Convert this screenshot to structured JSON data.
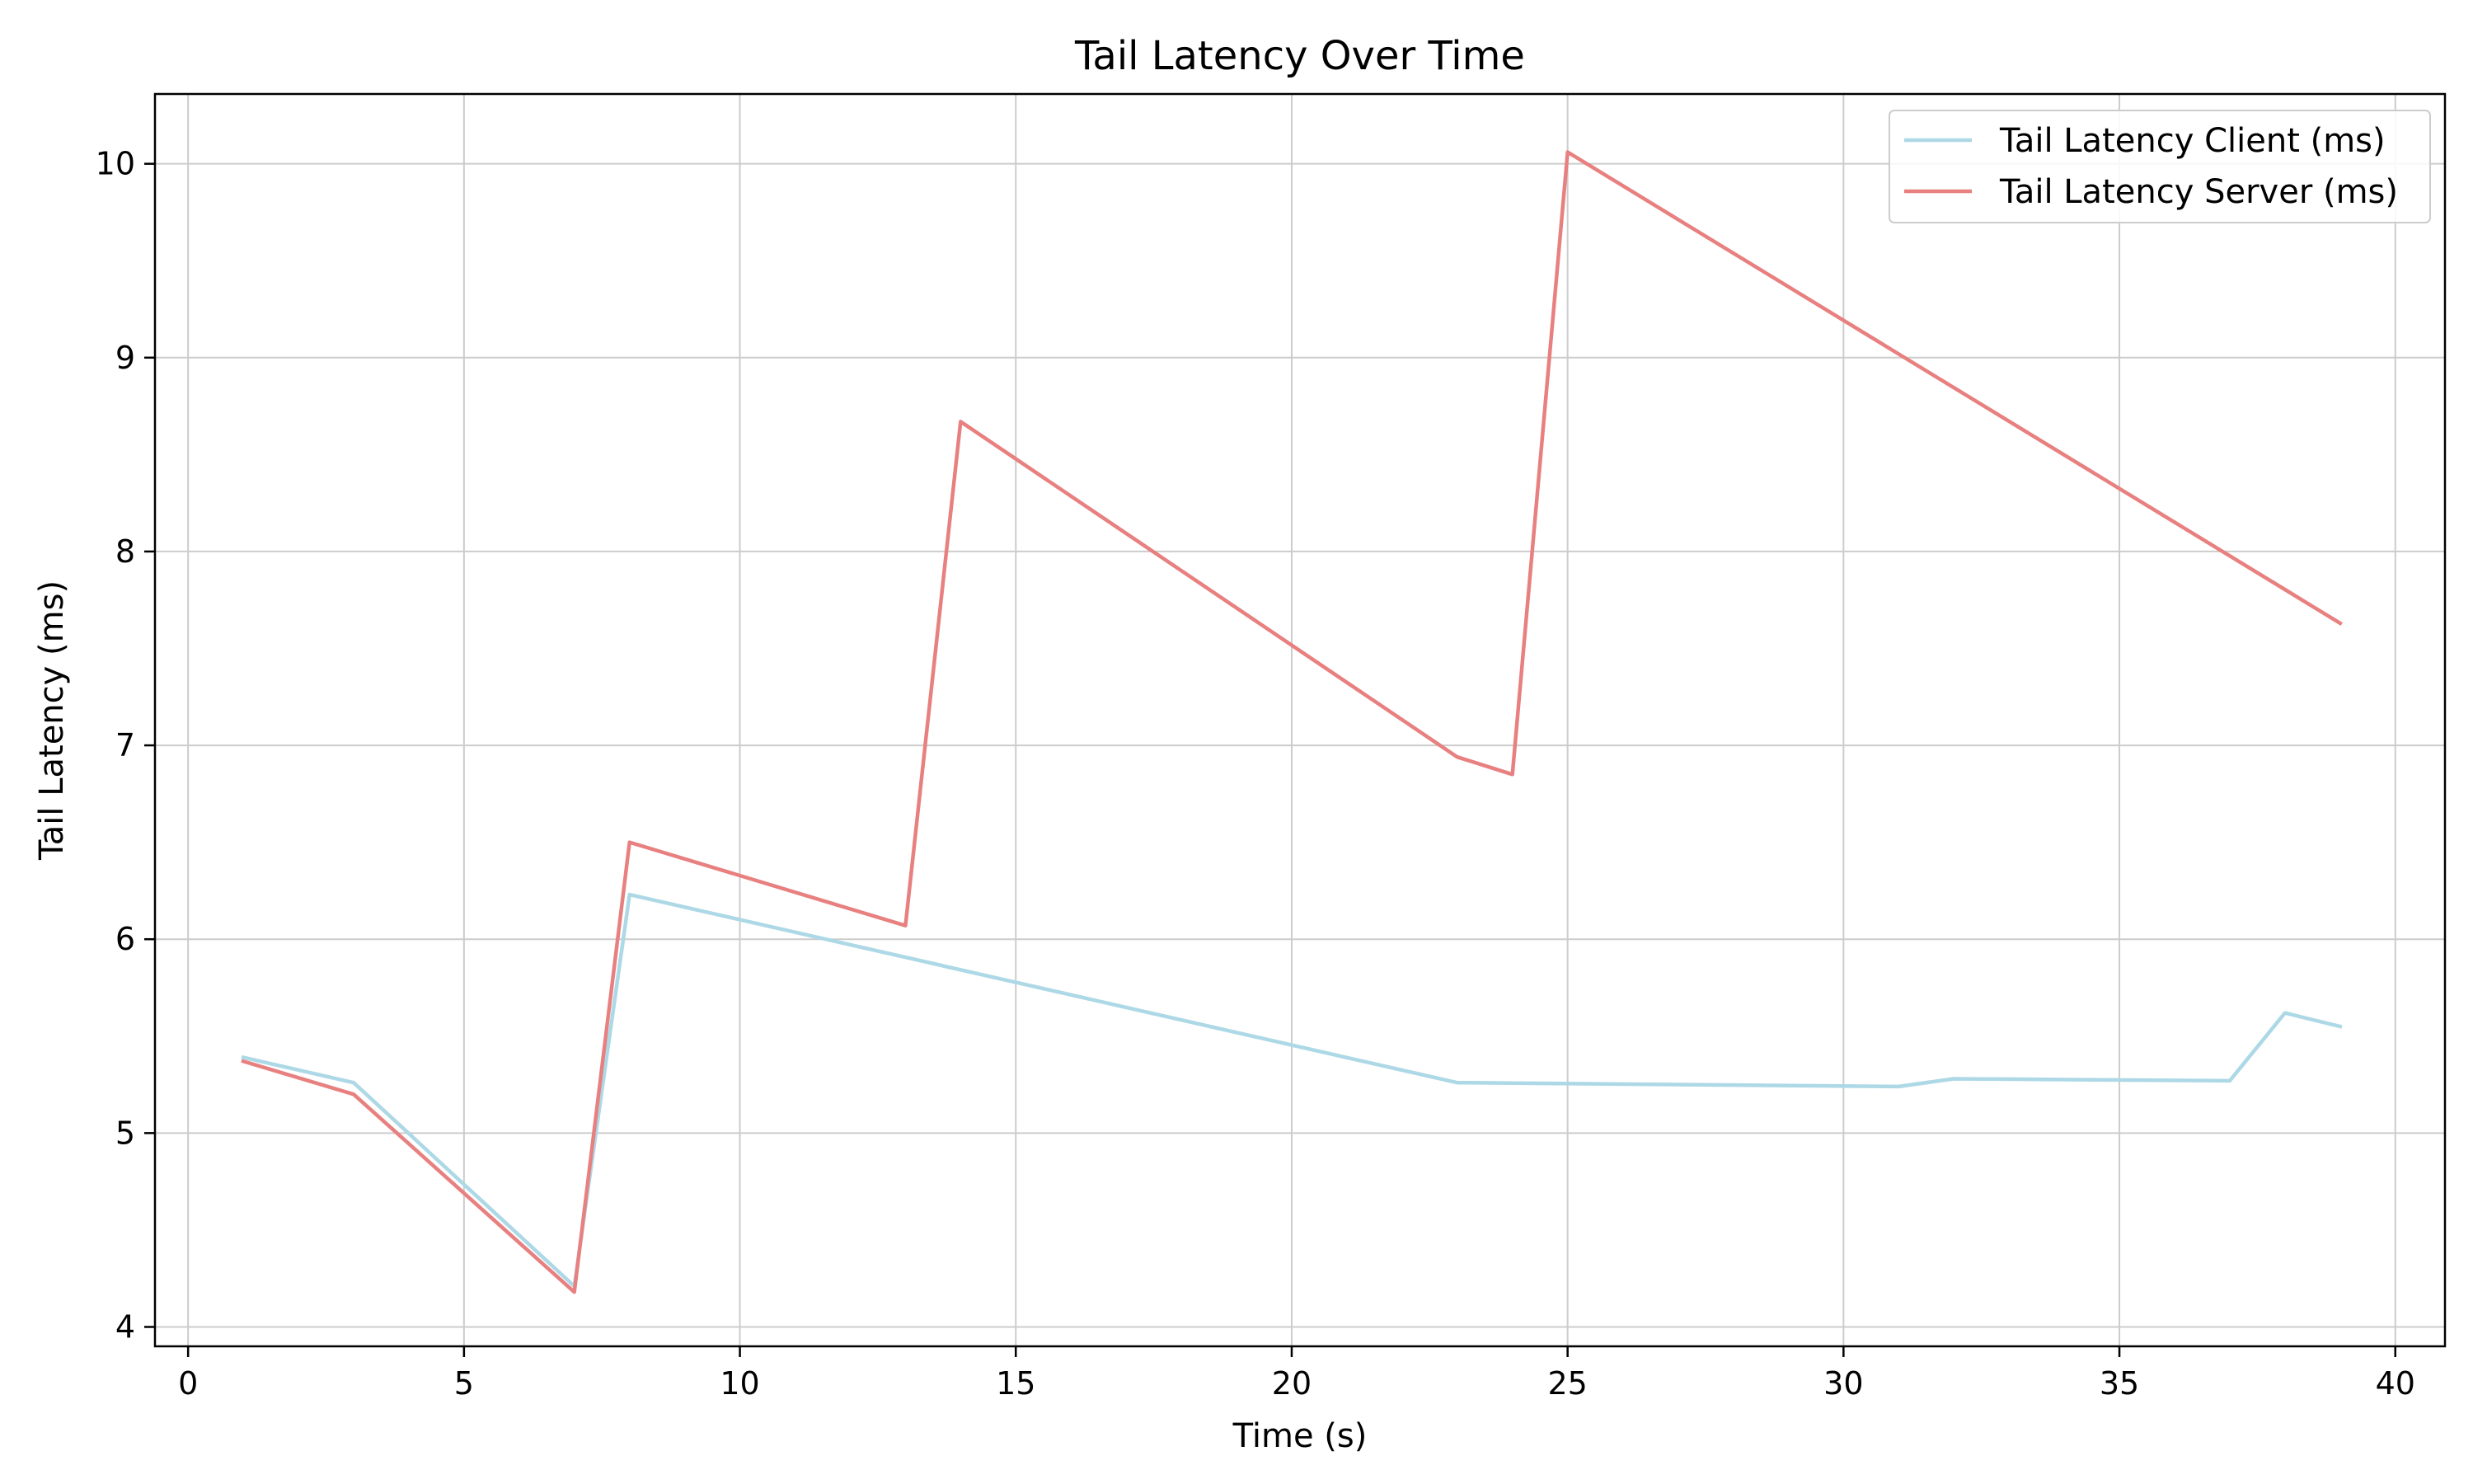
{
  "chart_data": {
    "type": "line",
    "title": "Tail Latency Over Time",
    "xlabel": "Time (s)",
    "ylabel": "Tail Latency (ms)",
    "xlim": [
      -0.6,
      40.9
    ],
    "ylim": [
      3.9,
      10.36
    ],
    "xticks": [
      0,
      5,
      10,
      15,
      20,
      25,
      30,
      35,
      40
    ],
    "yticks": [
      4,
      5,
      6,
      7,
      8,
      9,
      10
    ],
    "grid": true,
    "legend_position": "top-right",
    "series": [
      {
        "name": "Tail Latency Client (ms)",
        "color": "#add8e6",
        "x": [
          1,
          3,
          7,
          8,
          23,
          31,
          32,
          37,
          38,
          39
        ],
        "y": [
          5.39,
          5.26,
          4.21,
          6.23,
          5.26,
          5.24,
          5.28,
          5.27,
          5.62,
          5.55
        ]
      },
      {
        "name": "Tail Latency Server (ms)",
        "color": "#e88080",
        "x": [
          1,
          3,
          7,
          8,
          13,
          14,
          23,
          24,
          25,
          39
        ],
        "y": [
          5.37,
          5.2,
          4.18,
          6.5,
          6.07,
          8.67,
          6.94,
          6.85,
          10.06,
          7.63
        ]
      }
    ]
  }
}
